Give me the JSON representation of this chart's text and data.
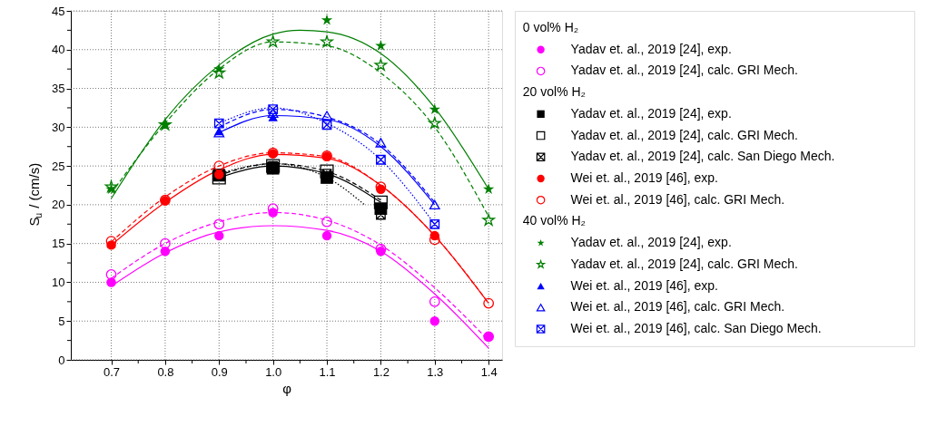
{
  "chart_data": {
    "type": "scatter",
    "xlabel": "φ",
    "ylabel": "S$_{u}$ / (cm/s)",
    "x": [
      0.7,
      0.8,
      0.9,
      1.0,
      1.1,
      1.2,
      1.3,
      1.4
    ],
    "xlim": [
      0.625,
      1.425
    ],
    "xticks": [
      {
        "value": 0.7,
        "label": "0.7"
      },
      {
        "value": 0.75,
        "label": null
      },
      {
        "value": 0.8,
        "label": "0.8"
      },
      {
        "value": 0.85,
        "label": null
      },
      {
        "value": 0.9,
        "label": "0.9"
      },
      {
        "value": 0.95,
        "label": null
      },
      {
        "value": 1.0,
        "label": "1.0"
      },
      {
        "value": 1.05,
        "label": null
      },
      {
        "value": 1.1,
        "label": "1.1"
      },
      {
        "value": 1.15,
        "label": null
      },
      {
        "value": 1.2,
        "label": "1.2"
      },
      {
        "value": 1.25,
        "label": null
      },
      {
        "value": 1.3,
        "label": "1.3"
      },
      {
        "value": 1.35,
        "label": null
      },
      {
        "value": 1.4,
        "label": "1.4"
      }
    ],
    "ylim": [
      0,
      45
    ],
    "yticks": [
      0,
      {
        "value": 2.5,
        "label": null
      },
      5,
      {
        "value": 7.5,
        "label": null
      },
      10,
      {
        "value": 12.5,
        "label": null
      },
      15,
      {
        "value": 17.5,
        "label": null
      },
      20,
      {
        "value": 22.5,
        "label": null
      },
      25,
      {
        "value": 27.5,
        "label": null
      },
      30,
      {
        "value": 32.5,
        "label": null
      },
      35,
      {
        "value": 37.5,
        "label": null
      },
      40,
      {
        "value": 42.5,
        "label": null
      },
      45
    ],
    "grid": true,
    "legend": "right",
    "annotations": [
      "0 vol% H₂",
      "20 vol% H₂",
      "40 vol% H₂"
    ],
    "series": [
      {
        "name": "Yadav et. al., 2019 [24], exp.",
        "color": "#ff00ff",
        "marker": "circle",
        "values": [
          10,
          14,
          16,
          19,
          16,
          14,
          5,
          3
        ]
      },
      {
        "name": "Yadav et. al., 2019 [24], calc. GRI Mech.",
        "color": "#ff00ff",
        "marker": "circle",
        "values": [
          11,
          15,
          17.5,
          19.5,
          17.8,
          14.3,
          7.5,
          3
        ]
      },
      {
        "name": "Yadav et. al., 2019 [24], exp.",
        "color": "#000000",
        "marker": "square",
        "x": [
          0.9,
          1.0,
          1.1,
          1.2
        ],
        "values": [
          23.8,
          24.7,
          23.5,
          19.5
        ]
      },
      {
        "name": "Yadav et. al., 2019 [24], calc. GRI Mech.",
        "color": "#000000",
        "marker": "square",
        "x": [
          0.9,
          1.0,
          1.1,
          1.2
        ],
        "values": [
          23.5,
          25,
          24.3,
          20.3
        ]
      },
      {
        "name": "Yadav et. al., 2019 [24], calc. San Diego Mech.",
        "color": "#000000",
        "marker": "cross",
        "x": [
          0.9,
          1.0,
          1.1,
          1.2
        ],
        "values": [
          24,
          25,
          24,
          18.7
        ]
      },
      {
        "name": "Wei et. al., 2019 [46], exp.",
        "color": "#ff0000",
        "marker": "circle",
        "values": [
          14.8,
          20.5,
          23.9,
          26.6,
          26.2,
          22,
          16,
          null
        ]
      },
      {
        "name": "Wei et. al., 2019 [46], calc. GRI Mech.",
        "color": "#ff0000",
        "marker": "circle",
        "values": [
          15.3,
          20.6,
          25,
          26.7,
          26.3,
          22.3,
          15.5,
          7.3
        ]
      },
      {
        "name": "Yadav et. al., 2019 [24], exp.",
        "color": "#007f00",
        "marker": "star",
        "values": [
          22,
          30.3,
          37.5,
          null,
          43.8,
          40.5,
          32.3,
          22
        ]
      },
      {
        "name": "Yadav et. al., 2019 [24], calc. GRI Mech.",
        "color": "#007f00",
        "marker": "star",
        "values": [
          22.3,
          30.3,
          37,
          41,
          41,
          38,
          30.5,
          18
        ]
      },
      {
        "name": "Wei et. al., 2019 [46], exp.",
        "color": "#0000ff",
        "marker": "triangle",
        "x": [
          0.9,
          1.0
        ],
        "values": [
          29.5,
          31.3
        ]
      },
      {
        "name": "Wei et. al., 2019 [46], calc. GRI Mech.",
        "color": "#0000ff",
        "marker": "triangle",
        "x": [
          0.9,
          1.0,
          1.1,
          1.2,
          1.3
        ],
        "values": [
          29.3,
          31.8,
          31.5,
          28,
          20
        ]
      },
      {
        "name": "Wei et. al., 2019 [46], calc. San Diego Mech.",
        "color": "#0000ff",
        "marker": "cross",
        "x": [
          0.9,
          1.0,
          1.1,
          1.2,
          1.3
        ],
        "values": [
          30.5,
          32.3,
          30.3,
          25.8,
          17.5
        ]
      },
      {
        "type": "line",
        "color": "#ff00ff",
        "line_style": "solid",
        "x": [
          0.7,
          0.8,
          0.9,
          1.0,
          1.1,
          1.2,
          1.3,
          1.4
        ],
        "values": [
          9.5,
          13.8,
          16.5,
          17.3,
          16.7,
          14,
          8.5,
          1.5
        ]
      },
      {
        "type": "line",
        "color": "#ff00ff",
        "line_style": "dashed",
        "x": [
          0.7,
          0.8,
          0.9,
          1.0,
          1.1,
          1.2,
          1.3,
          1.4
        ],
        "values": [
          10.5,
          15,
          17.8,
          19,
          18,
          14.8,
          9.3,
          2.5
        ]
      },
      {
        "type": "line",
        "color": "#000000",
        "line_style": "solid",
        "x": [
          0.9,
          1.0,
          1.1,
          1.2
        ],
        "values": [
          23.5,
          25,
          24,
          20.3
        ]
      },
      {
        "type": "line",
        "color": "#000000",
        "line_style": "dashed",
        "x": [
          0.9,
          1.0,
          1.1,
          1.2
        ],
        "values": [
          23.8,
          25.3,
          24.3,
          20.6
        ]
      },
      {
        "type": "line",
        "color": "#000000",
        "line_style": "dotted",
        "x": [
          0.9,
          1.0,
          1.1,
          1.17
        ],
        "values": [
          24,
          25.3,
          23.5,
          20
        ]
      },
      {
        "type": "line",
        "color": "#ff0000",
        "line_style": "solid",
        "x": [
          0.7,
          0.8,
          0.9,
          1.0,
          1.1,
          1.2,
          1.3,
          1.4
        ],
        "values": [
          14.8,
          20.3,
          24.5,
          26.5,
          26,
          22.5,
          16,
          7.3
        ]
      },
      {
        "type": "line",
        "color": "#ff0000",
        "line_style": "dashed",
        "x": [
          0.7,
          0.8,
          0.9,
          1.0,
          1.1,
          1.2,
          1.3,
          1.4
        ],
        "values": [
          15.2,
          21,
          25,
          26.7,
          26.2,
          22.5,
          16,
          7.3
        ]
      },
      {
        "type": "line",
        "color": "#007f00",
        "line_style": "solid",
        "x": [
          0.7,
          0.8,
          0.9,
          1.0,
          1.05,
          1.1,
          1.2,
          1.3,
          1.4
        ],
        "values": [
          20.8,
          31,
          38,
          42,
          42.5,
          42.3,
          39.5,
          32.5,
          22
        ]
      },
      {
        "type": "line",
        "color": "#007f00",
        "line_style": "dashed",
        "x": [
          0.7,
          0.8,
          0.9,
          1.0,
          1.1,
          1.2,
          1.3,
          1.4
        ],
        "values": [
          21.5,
          30.5,
          37.5,
          41,
          40.5,
          37,
          30,
          18.5
        ]
      },
      {
        "type": "line",
        "color": "#0000ff",
        "line_style": "solid",
        "x": [
          0.9,
          1.0,
          1.1,
          1.2,
          1.3
        ],
        "values": [
          29.3,
          31.5,
          31,
          27.5,
          20
        ]
      },
      {
        "type": "line",
        "color": "#0000ff",
        "line_style": "dashed",
        "x": [
          0.9,
          1.0,
          1.1,
          1.2,
          1.3
        ],
        "values": [
          30,
          32.3,
          31.3,
          27.8,
          20.3
        ]
      },
      {
        "type": "line",
        "color": "#0000ff",
        "line_style": "dotted",
        "x": [
          0.9,
          1.0,
          1.1,
          1.2,
          1.3
        ],
        "values": [
          30.5,
          32.5,
          30.5,
          25.8,
          17.5
        ]
      }
    ]
  }
}
